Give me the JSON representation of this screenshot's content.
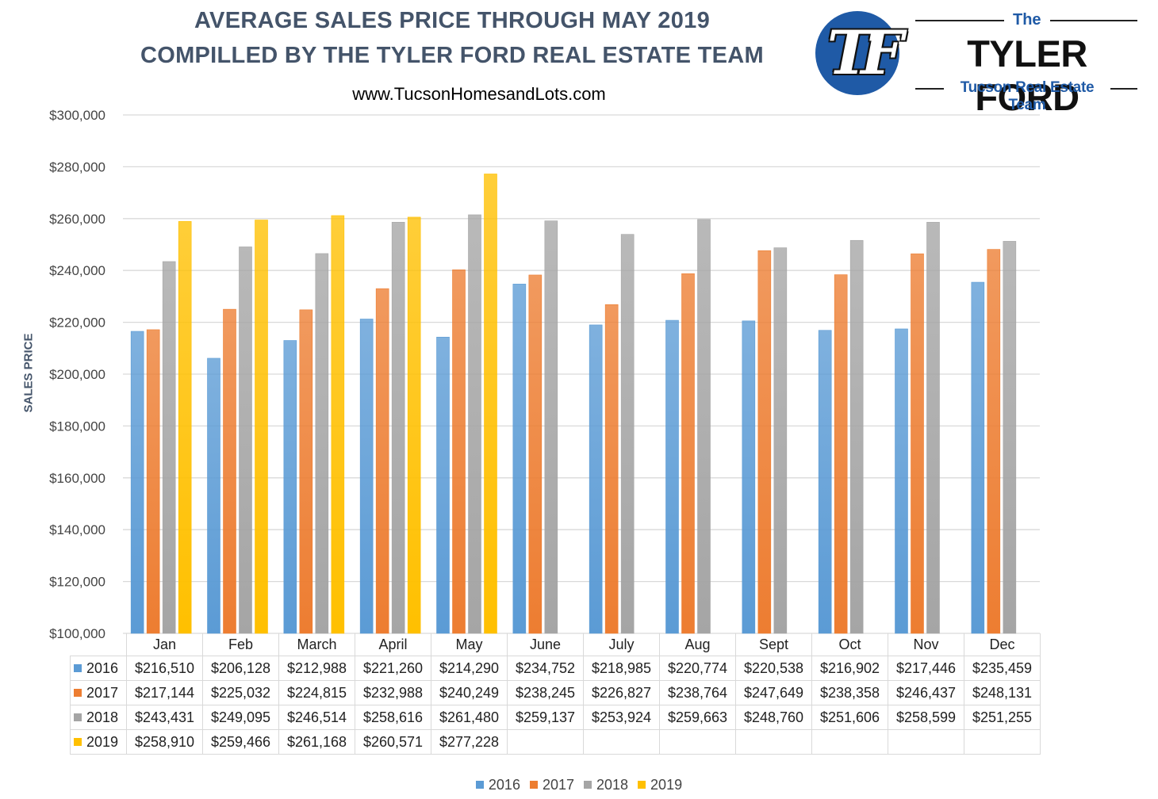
{
  "header": {
    "title_line1": "AVERAGE SALES PRICE THROUGH MAY 2019",
    "title_line2": "COMPILLED BY THE TYLER FORD REAL ESTATE TEAM",
    "website": "www.TucsonHomesandLots.com"
  },
  "logo": {
    "the": "The",
    "name": "TYLER FORD",
    "subtitle": "Tucson Real Estate Team",
    "monogram": "TF"
  },
  "chart_data": {
    "type": "bar",
    "title": "AVERAGE SALES PRICE THROUGH MAY 2019",
    "ylabel": "SALES PRICE",
    "xlabel": "",
    "ylim": [
      100000,
      300000
    ],
    "yticks": [
      100000,
      120000,
      140000,
      160000,
      180000,
      200000,
      220000,
      240000,
      260000,
      280000,
      300000
    ],
    "ytick_labels": [
      "$100,000",
      "$120,000",
      "$140,000",
      "$160,000",
      "$180,000",
      "$200,000",
      "$220,000",
      "$240,000",
      "$260,000",
      "$280,000",
      "$300,000"
    ],
    "grid": true,
    "legend_position": "bottom",
    "categories": [
      "Jan",
      "Feb",
      "March",
      "April",
      "May",
      "June",
      "July",
      "Aug",
      "Sept",
      "Oct",
      "Nov",
      "Dec"
    ],
    "series": [
      {
        "name": "2016",
        "color": "#5b9bd5",
        "values": [
          216510,
          206128,
          212988,
          221260,
          214290,
          234752,
          218985,
          220774,
          220538,
          216902,
          217446,
          235459
        ],
        "labels": [
          "$216,510",
          "$206,128",
          "$212,988",
          "$221,260",
          "$214,290",
          "$234,752",
          "$218,985",
          "$220,774",
          "$220,538",
          "$216,902",
          "$217,446",
          "$235,459"
        ]
      },
      {
        "name": "2017",
        "color": "#ed7d31",
        "values": [
          217144,
          225032,
          224815,
          232988,
          240249,
          238245,
          226827,
          238764,
          247649,
          238358,
          246437,
          248131
        ],
        "labels": [
          "$217,144",
          "$225,032",
          "$224,815",
          "$232,988",
          "$240,249",
          "$238,245",
          "$226,827",
          "$238,764",
          "$247,649",
          "$238,358",
          "$246,437",
          "$248,131"
        ]
      },
      {
        "name": "2018",
        "color": "#a5a5a5",
        "values": [
          243431,
          249095,
          246514,
          258616,
          261480,
          259137,
          253924,
          259663,
          248760,
          251606,
          258599,
          251255
        ],
        "labels": [
          "$243,431",
          "$249,095",
          "$246,514",
          "$258,616",
          "$261,480",
          "$259,137",
          "$253,924",
          "$259,663",
          "$248,760",
          "$251,606",
          "$258,599",
          "$251,255"
        ]
      },
      {
        "name": "2019",
        "color": "#ffc000",
        "values": [
          258910,
          259466,
          261168,
          260571,
          277228,
          null,
          null,
          null,
          null,
          null,
          null,
          null
        ],
        "labels": [
          "$258,910",
          "$259,466",
          "$261,168",
          "$260,571",
          "$277,228",
          "",
          "",
          "",
          "",
          "",
          "",
          ""
        ]
      }
    ]
  }
}
